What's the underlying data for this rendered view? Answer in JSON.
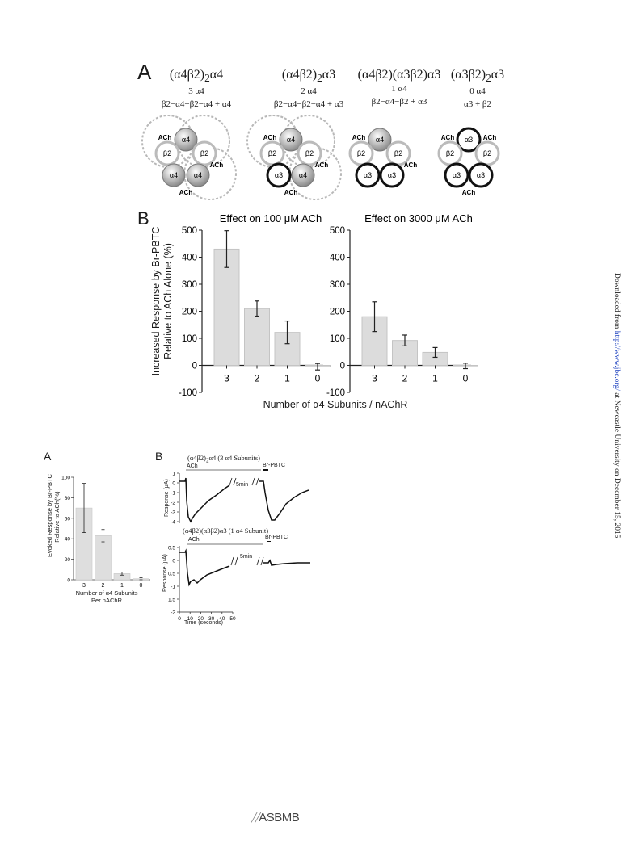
{
  "figure_top": {
    "panel_a_letter": "A",
    "panel_b_letter": "B",
    "subtypes": [
      {
        "name_html": "(α4β2)<sub>2</sub>α4",
        "count": "3 α4",
        "composition": "β2−α4−β2−α4 + α4"
      },
      {
        "name_html": "(α4β2)<sub>2</sub>α3",
        "count": "2 α4",
        "composition": "β2−α4−β2−α4 + α3"
      },
      {
        "name_html": "(α4β2)(α3β2)α3",
        "count": "1 α4",
        "composition": "β2−α4−β2 + α3"
      },
      {
        "name_html": "(α3β2)<sub>2</sub>α3",
        "count": "0 α4",
        "composition": "α3 + β2"
      }
    ],
    "y_axis_label_line1": "Increased Response by Br-PBTC",
    "y_axis_label_line2": "Relative to ACh Alone (%)",
    "x_axis_label": "Number of α4 Subunits / nAChR",
    "chart_data": [
      {
        "type": "bar",
        "title": "Effect on 100 μM ACh",
        "categories": [
          "3",
          "2",
          "1",
          "0"
        ],
        "values": [
          430,
          210,
          122,
          -5
        ],
        "errors": [
          68,
          28,
          42,
          12
        ],
        "ylim": [
          -100,
          500
        ],
        "yticks": [
          "-100",
          "0",
          "100",
          "200",
          "300",
          "400",
          "500"
        ]
      },
      {
        "type": "bar",
        "title": "Effect on 3000 μM ACh",
        "categories": [
          "3",
          "2",
          "1",
          "0"
        ],
        "values": [
          180,
          92,
          48,
          -2
        ],
        "errors": [
          55,
          20,
          18,
          10
        ],
        "ylim": [
          -100,
          500
        ],
        "yticks": [
          "-100",
          "0",
          "100",
          "200",
          "300",
          "400",
          "500"
        ]
      }
    ]
  },
  "figure_bottom": {
    "panel_a_letter": "A",
    "panel_b_letter": "B",
    "chart_a": {
      "type": "bar",
      "categories": [
        "3",
        "2",
        "1",
        "0"
      ],
      "values": [
        70,
        43,
        6,
        1
      ],
      "errors": [
        24,
        6,
        1.5,
        1
      ],
      "ylim": [
        0,
        100
      ],
      "yticks": [
        "0",
        "20",
        "40",
        "60",
        "80",
        "100"
      ],
      "ylabel_line1": "Evoked Response by Br-PBTC",
      "ylabel_line2": "Relative to ACh(%)",
      "xlabel_line1": "Number of α4 Subunits",
      "xlabel_line2": "Per nAChR"
    },
    "trace_top": {
      "title": "(α4β2)<sub>2</sub>α4  (3 α4 Subunits)",
      "ach_label": "ACh",
      "drug_label": "Br-PBTC",
      "gap_label": "5min",
      "ylabel": "Response (μA)",
      "yticks": [
        "-4",
        "-3",
        "-2",
        "-1",
        "0",
        "1"
      ]
    },
    "trace_bottom": {
      "title": "(α4β2)(α3β2)α3  (1 α4 Subunit)",
      "ach_label": "ACh",
      "drug_label": "Br-PBTC",
      "gap_label": "5min",
      "ylabel": "Response (μA)",
      "yticks": [
        "-2",
        "-1.5",
        "-1",
        "-0.5",
        "0",
        "0.5"
      ],
      "xticks": [
        "0",
        "10",
        "20",
        "30",
        "40",
        "50"
      ],
      "xlabel": "Time (seconds)"
    }
  },
  "side_note": {
    "prefix": "Downloaded from ",
    "link": "http://www.jbc.org/",
    "suffix": " at Newcastle University on December 15, 2015"
  },
  "footer_logo": "ASBMB"
}
